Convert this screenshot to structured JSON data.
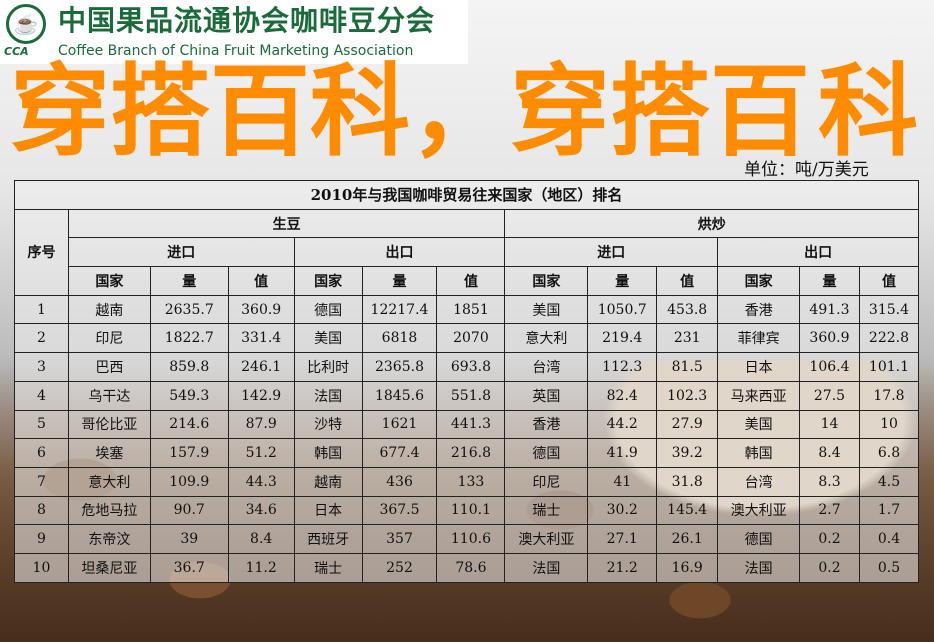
{
  "logo": {
    "cn": "中国果品流通协会咖啡豆分会",
    "en": "Coffee Branch of China Fruit Marketing Association",
    "abbr": "CCA"
  },
  "unit": "单位：吨/万美元",
  "table": {
    "title": "2010年与我国咖啡贸易往来国家（地区）排名",
    "seq_label": "序号",
    "groups": [
      "生豆",
      "烘炒"
    ],
    "subgroups": [
      "进口",
      "出口",
      "进口",
      "出口"
    ],
    "columns": [
      "国家",
      "量",
      "值"
    ],
    "rows": [
      [
        "1",
        "越南",
        "2635.7",
        "360.9",
        "德国",
        "12217.4",
        "1851",
        "美国",
        "1050.7",
        "453.8",
        "香港",
        "491.3",
        "315.4"
      ],
      [
        "2",
        "印尼",
        "1822.7",
        "331.4",
        "美国",
        "6818",
        "2070",
        "意大利",
        "219.4",
        "231",
        "菲律宾",
        "360.9",
        "222.8"
      ],
      [
        "3",
        "巴西",
        "859.8",
        "246.1",
        "比利时",
        "2365.8",
        "693.8",
        "台湾",
        "112.3",
        "81.5",
        "日本",
        "106.4",
        "101.1"
      ],
      [
        "4",
        "乌干达",
        "549.3",
        "142.9",
        "法国",
        "1845.6",
        "551.8",
        "英国",
        "82.4",
        "102.3",
        "马来西亚",
        "27.5",
        "17.8"
      ],
      [
        "5",
        "哥伦比亚",
        "214.6",
        "87.9",
        "沙特",
        "1621",
        "441.3",
        "香港",
        "44.2",
        "27.9",
        "美国",
        "14",
        "10"
      ],
      [
        "6",
        "埃塞",
        "157.9",
        "51.2",
        "韩国",
        "677.4",
        "216.8",
        "德国",
        "41.9",
        "39.2",
        "韩国",
        "8.4",
        "6.8"
      ],
      [
        "7",
        "意大利",
        "109.9",
        "44.3",
        "越南",
        "436",
        "133",
        "印尼",
        "41",
        "31.8",
        "台湾",
        "8.3",
        "4.5"
      ],
      [
        "8",
        "危地马拉",
        "90.7",
        "34.6",
        "日本",
        "367.5",
        "110.1",
        "瑞士",
        "30.2",
        "145.4",
        "澳大利亚",
        "2.7",
        "1.7"
      ],
      [
        "9",
        "东帝汶",
        "39",
        "8.4",
        "西班牙",
        "357",
        "110.6",
        "澳大利亚",
        "27.1",
        "26.1",
        "德国",
        "0.2",
        "0.4"
      ],
      [
        "10",
        "坦桑尼亚",
        "36.7",
        "11.2",
        "瑞士",
        "252",
        "78.6",
        "法国",
        "21.2",
        "16.9",
        "法国",
        "0.2",
        "0.5"
      ]
    ]
  },
  "watermark": {
    "line1": "穿搭百科，穿搭百",
    "line2": "科",
    "color": "#ff8c00"
  }
}
